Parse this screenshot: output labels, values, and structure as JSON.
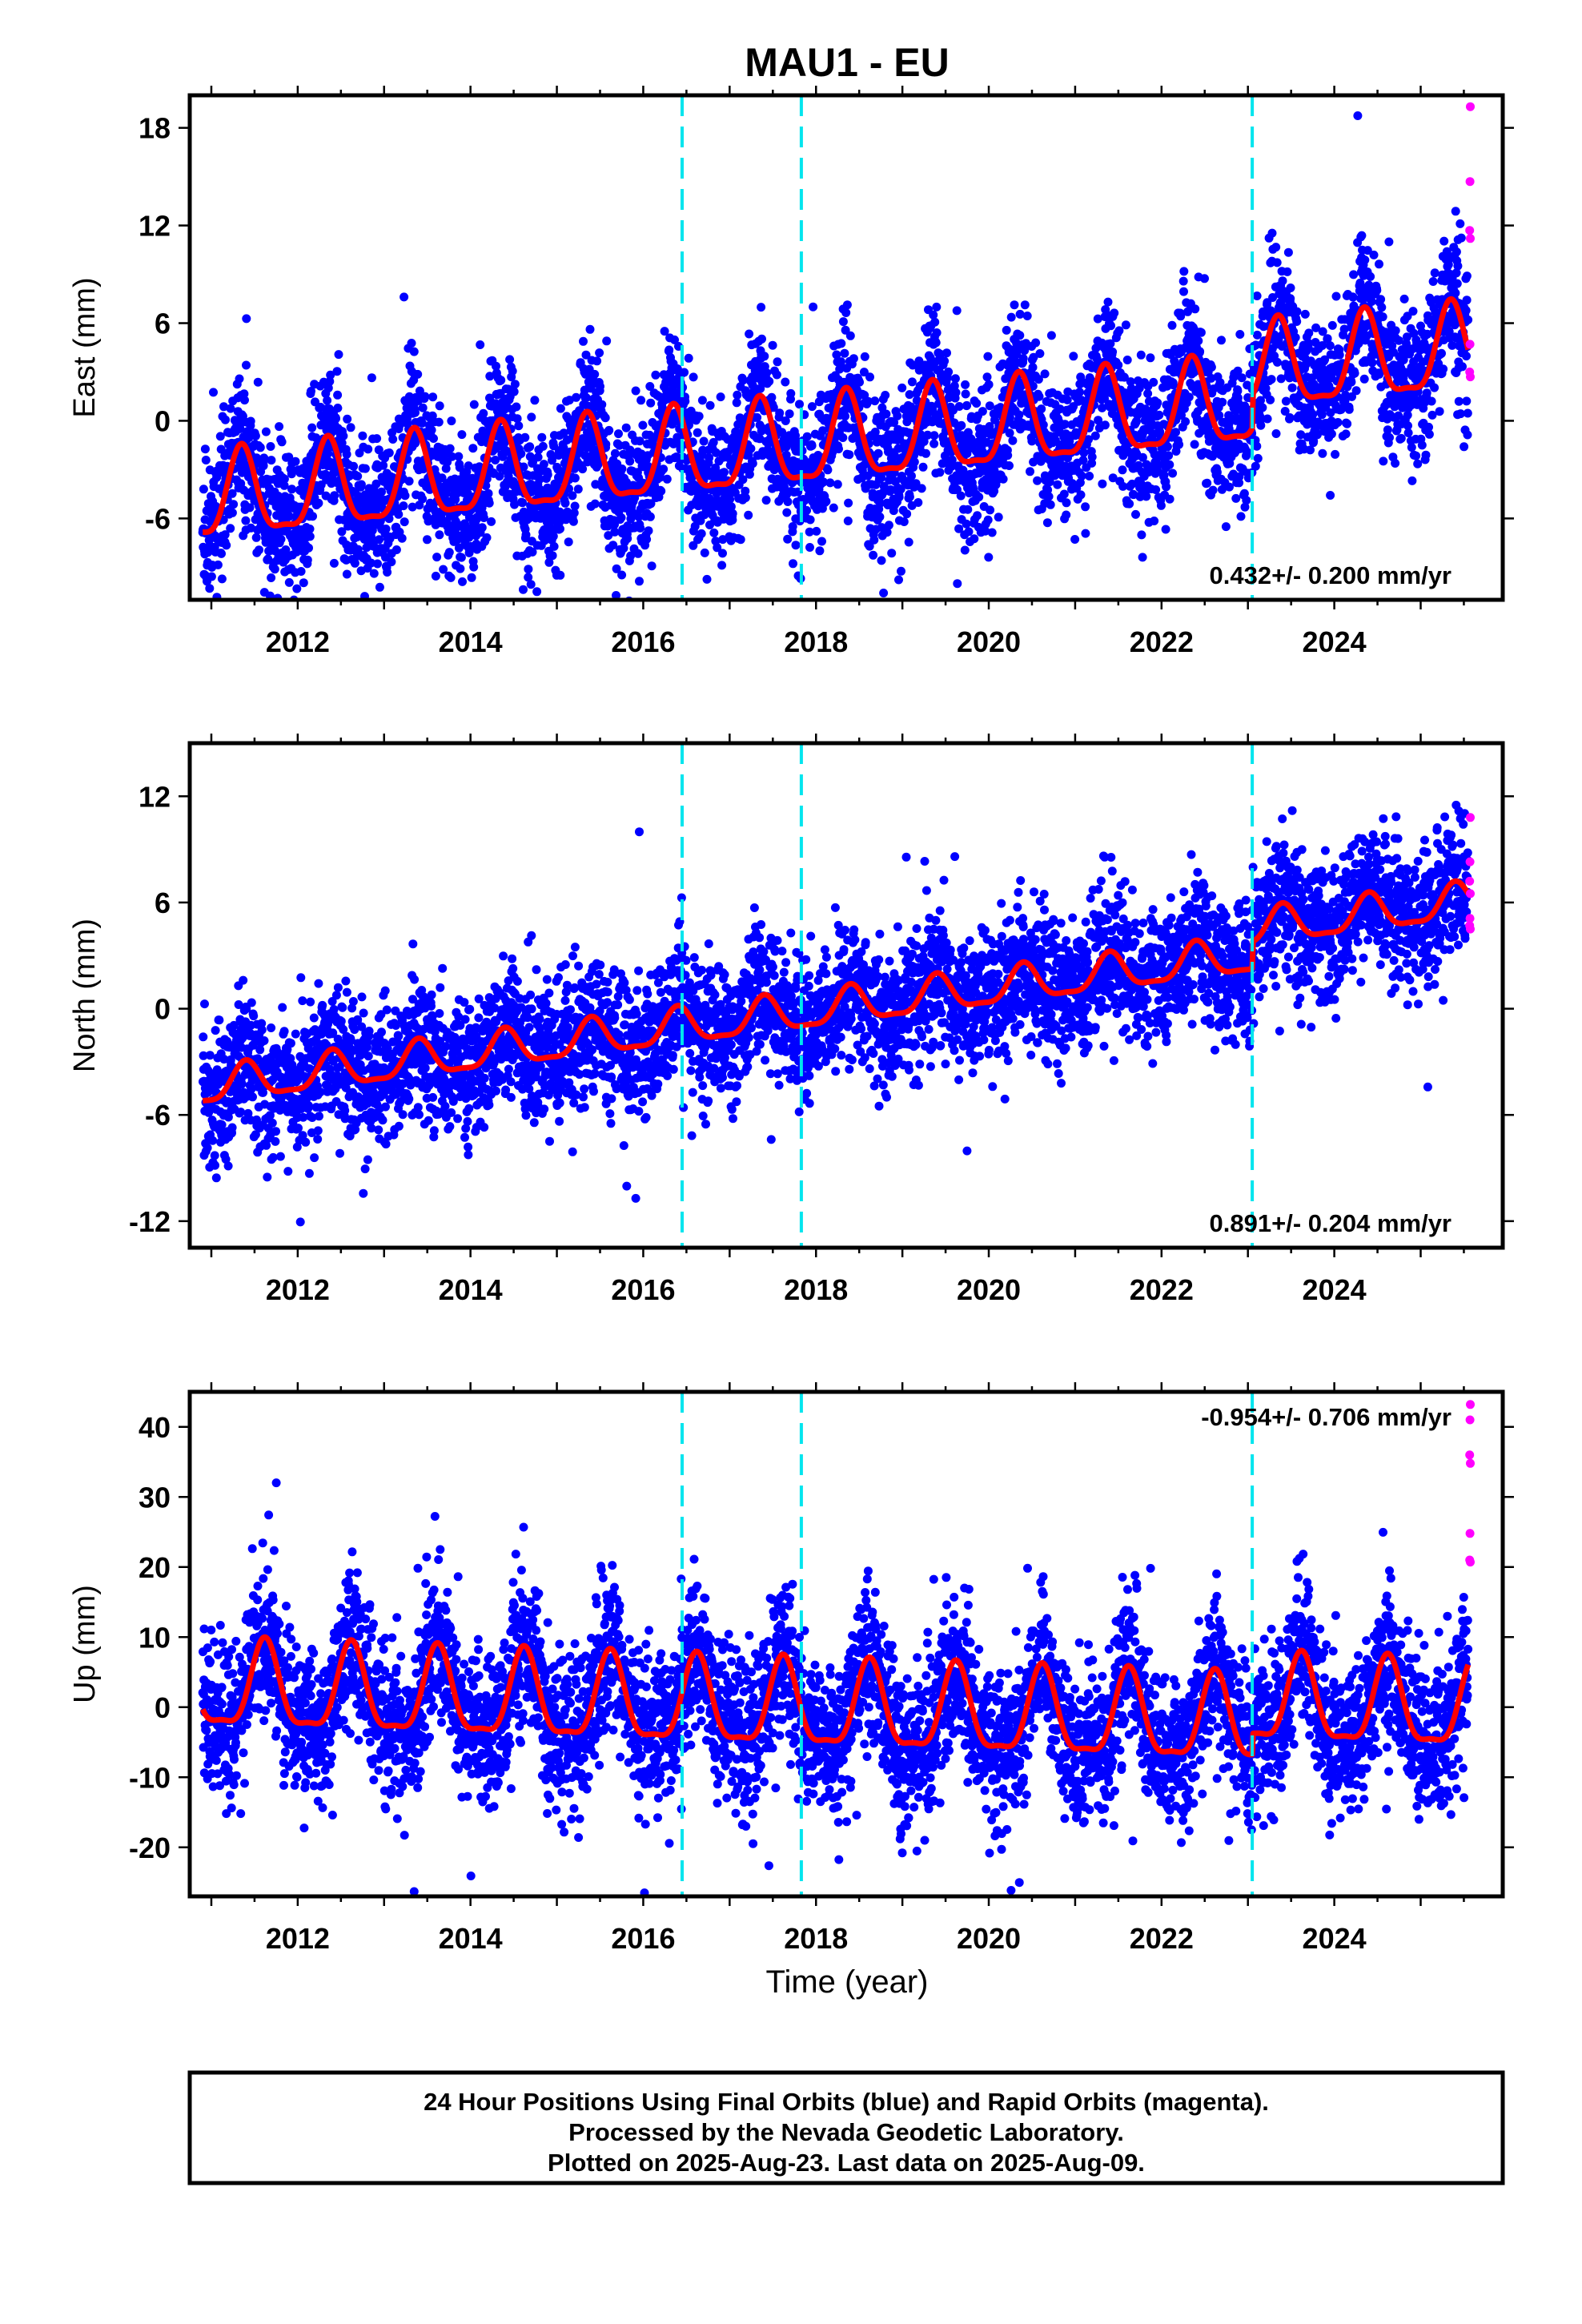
{
  "title": "MAU1 - EU",
  "colors": {
    "final_points": "#0000ff",
    "rapid_points": "#ff00ff",
    "model_line": "#ff0000",
    "offset_lines": "#00e5ee",
    "frame": "#000000"
  },
  "x_axis": {
    "label": "Time (year)",
    "range": [
      2010.75,
      2025.95
    ],
    "ticks": [
      "2012",
      "2014",
      "2016",
      "2018",
      "2020",
      "2022",
      "2024"
    ]
  },
  "offset_epochs": [
    2016.45,
    2017.83,
    2023.05
  ],
  "footer": {
    "line1": "24 Hour Positions Using Final Orbits (blue) and Rapid Orbits (magenta).",
    "line2": "Processed by the Nevada Geodetic Laboratory.",
    "line3": "Plotted on 2025-Aug-23. Last data on 2025-Aug-09."
  },
  "chart_data": [
    {
      "type": "scatter",
      "component": "east",
      "ylabel": "East (mm)",
      "ylim": [
        -11,
        20
      ],
      "yticks": [
        "-6",
        "0",
        "6",
        "12",
        "18"
      ],
      "rate_label": "0.432+/- 0.200 mm/yr",
      "rate_position": "bottom-right",
      "x_range": [
        2010.9,
        2025.55
      ],
      "model": {
        "start_value": -5.0,
        "end_value": 4.2,
        "annual_amplitude": 2.6,
        "peak_phase_year_fraction": 0.35,
        "step_2023": 2.0
      },
      "scatter_sigma": 2.2,
      "rapid_orbit_values": [
        19.3,
        14.7,
        11.7,
        11.2,
        4.7,
        3.0,
        2.7
      ]
    },
    {
      "type": "scatter",
      "component": "north",
      "ylabel": "North (mm)",
      "ylim": [
        -13.5,
        15
      ],
      "yticks": [
        "-12",
        "-6",
        "0",
        "6",
        "12"
      ],
      "rate_label": "0.891+/- 0.204 mm/yr",
      "rate_position": "bottom-right",
      "x_range": [
        2010.9,
        2025.55
      ],
      "model": {
        "start_value": -4.5,
        "end_value": 6.0,
        "annual_amplitude": 1.0,
        "peak_phase_year_fraction": 0.4,
        "step_2023": 1.5
      },
      "scatter_sigma": 1.9,
      "rapid_orbit_values": [
        10.8,
        8.3,
        7.2,
        6.5,
        5.1,
        4.7,
        4.5
      ]
    },
    {
      "type": "scatter",
      "component": "up",
      "ylabel": "Up (mm)",
      "ylim": [
        -27,
        45
      ],
      "yticks": [
        "-20",
        "-10",
        "0",
        "10",
        "20",
        "30",
        "40"
      ],
      "rate_label": "-0.954+/- 0.706 mm/yr",
      "rate_position": "top-right",
      "x_range": [
        2010.9,
        2025.55
      ],
      "model": {
        "start_value": 2.5,
        "end_value": -0.5,
        "annual_amplitude": 6.0,
        "peak_phase_year_fraction": 0.62,
        "step_2023": 3.0
      },
      "scatter_sigma": 5.5,
      "rapid_orbit_values": [
        43.2,
        41.0,
        36.0,
        34.8,
        24.8,
        21.0,
        20.7
      ]
    }
  ]
}
